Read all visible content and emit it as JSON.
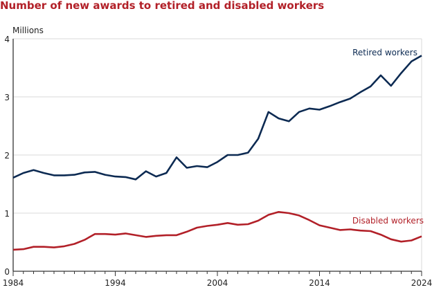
{
  "chart_data": {
    "type": "line",
    "title": "Number of new awards to retired and disabled workers",
    "ylabel": "Millions",
    "xlabel": "",
    "xlim": [
      1984,
      2024
    ],
    "ylim": [
      0,
      4
    ],
    "xticks": [
      1984,
      1994,
      2004,
      2014,
      2024
    ],
    "yticks": [
      0,
      1,
      2,
      3,
      4
    ],
    "grid": "horizontal",
    "x": [
      1984,
      1985,
      1986,
      1987,
      1988,
      1989,
      1990,
      1991,
      1992,
      1993,
      1994,
      1995,
      1996,
      1997,
      1998,
      1999,
      2000,
      2001,
      2002,
      2003,
      2004,
      2005,
      2006,
      2007,
      2008,
      2009,
      2010,
      2011,
      2012,
      2013,
      2014,
      2015,
      2016,
      2017,
      2018,
      2019,
      2020,
      2021,
      2022,
      2023,
      2024
    ],
    "series": [
      {
        "name": "Retired workers",
        "color": "#0c2a52",
        "values": [
          1.61,
          1.69,
          1.74,
          1.69,
          1.65,
          1.65,
          1.66,
          1.7,
          1.71,
          1.66,
          1.63,
          1.62,
          1.58,
          1.72,
          1.63,
          1.69,
          1.96,
          1.78,
          1.81,
          1.79,
          1.88,
          2.0,
          2.0,
          2.04,
          2.28,
          2.74,
          2.63,
          2.58,
          2.74,
          2.8,
          2.78,
          2.84,
          2.91,
          2.97,
          3.08,
          3.18,
          3.37,
          3.19,
          3.41,
          3.61,
          3.71
        ]
      },
      {
        "name": "Disabled workers",
        "color": "#b22028",
        "values": [
          0.37,
          0.38,
          0.42,
          0.42,
          0.41,
          0.43,
          0.47,
          0.54,
          0.64,
          0.64,
          0.63,
          0.65,
          0.62,
          0.59,
          0.61,
          0.62,
          0.62,
          0.68,
          0.75,
          0.78,
          0.8,
          0.83,
          0.8,
          0.81,
          0.87,
          0.97,
          1.02,
          1.0,
          0.96,
          0.88,
          0.79,
          0.75,
          0.71,
          0.72,
          0.7,
          0.69,
          0.63,
          0.55,
          0.51,
          0.53,
          0.6
        ]
      }
    ]
  }
}
